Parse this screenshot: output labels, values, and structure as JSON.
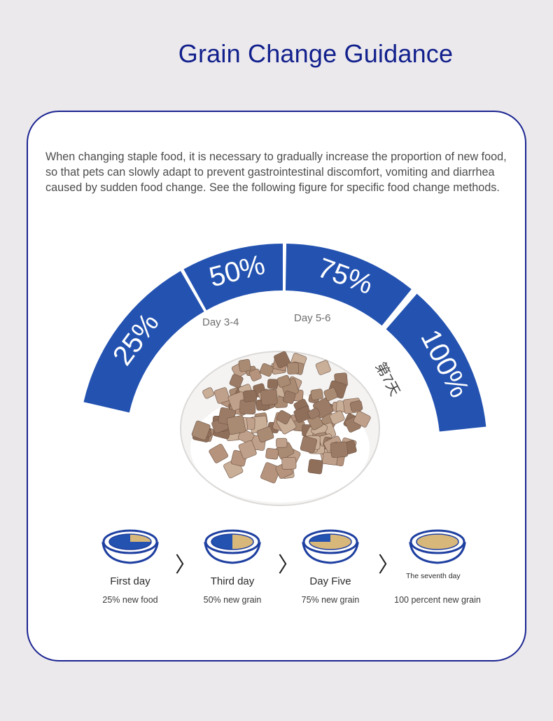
{
  "title": "Grain Change Guidance",
  "intro": "When changing staple food, it is necessary to gradually increase the proportion of new food, so that pets can slowly adapt to prevent gastrointestinal discomfort, vomiting and diarrhea caused by sudden food change. See the following figure for specific food change methods.",
  "colors": {
    "accent": "#2352b0",
    "title": "#12208c",
    "food": "#d8b77a"
  },
  "gauge": {
    "segments": [
      {
        "label": "25%",
        "fraction": 0.25
      },
      {
        "label": "50%",
        "fraction": 0.5
      },
      {
        "label": "75%",
        "fraction": 0.75
      },
      {
        "label": "100%",
        "fraction": 1.0
      }
    ],
    "day_labels": [
      "Day 3-4",
      "Day 5-6",
      "第7天"
    ]
  },
  "steps": [
    {
      "label": "First day",
      "sub": "25% new food",
      "new_fraction": 0.25,
      "icon": "food-bowl-icon"
    },
    {
      "label": "Third day",
      "sub": "50% new grain",
      "new_fraction": 0.5,
      "icon": "food-bowl-icon"
    },
    {
      "label": "Day Five",
      "sub": "75% new grain",
      "new_fraction": 0.75,
      "icon": "food-bowl-icon"
    },
    {
      "label": "The seventh day",
      "sub": "100 percent new grain",
      "new_fraction": 1.0,
      "icon": "food-bowl-icon"
    }
  ],
  "separator_glyph": "〉"
}
